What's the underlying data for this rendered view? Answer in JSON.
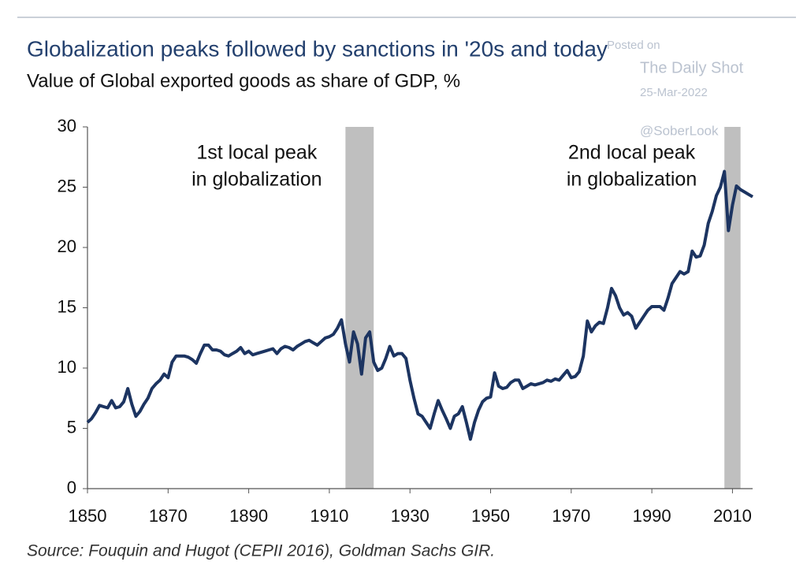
{
  "chart_data": {
    "type": "line",
    "title": "Globalization peaks followed by sanctions in '20s and today",
    "subtitle": "Value of Global exported goods as share of GDP, %",
    "source": "Source: Fouquin and Hugot (CEPII 2016), Goldman Sachs GIR.",
    "watermark": [
      "Posted on",
      "The Daily Shot",
      "25-Mar-2022",
      "@SoberLook"
    ],
    "annotations": [
      {
        "lines": [
          "1st local peak",
          "in globalization"
        ],
        "x": 1892
      },
      {
        "lines": [
          "2nd local peak",
          "in globalization"
        ],
        "x": 1985
      }
    ],
    "shaded_periods": [
      [
        1914,
        1921
      ],
      [
        2008,
        2012
      ]
    ],
    "xlim": [
      1850,
      2015
    ],
    "xticks": [
      1850,
      1870,
      1890,
      1910,
      1930,
      1950,
      1970,
      1990,
      2010
    ],
    "ylim": [
      0,
      30
    ],
    "yticks": [
      0,
      5,
      10,
      15,
      20,
      25,
      30
    ],
    "x": [
      1850,
      1851,
      1852,
      1853,
      1854,
      1855,
      1856,
      1857,
      1858,
      1859,
      1860,
      1861,
      1862,
      1863,
      1864,
      1865,
      1866,
      1867,
      1868,
      1869,
      1870,
      1871,
      1872,
      1873,
      1874,
      1875,
      1876,
      1877,
      1878,
      1879,
      1880,
      1881,
      1882,
      1883,
      1884,
      1885,
      1886,
      1887,
      1888,
      1889,
      1890,
      1891,
      1892,
      1893,
      1894,
      1895,
      1896,
      1897,
      1898,
      1899,
      1900,
      1901,
      1902,
      1903,
      1904,
      1905,
      1906,
      1907,
      1908,
      1909,
      1910,
      1911,
      1912,
      1913,
      1914,
      1915,
      1916,
      1917,
      1918,
      1919,
      1920,
      1921,
      1922,
      1923,
      1924,
      1925,
      1926,
      1927,
      1928,
      1929,
      1930,
      1931,
      1932,
      1933,
      1934,
      1935,
      1936,
      1937,
      1938,
      1939,
      1940,
      1941,
      1942,
      1943,
      1944,
      1945,
      1946,
      1947,
      1948,
      1949,
      1950,
      1951,
      1952,
      1953,
      1954,
      1955,
      1956,
      1957,
      1958,
      1959,
      1960,
      1961,
      1962,
      1963,
      1964,
      1965,
      1966,
      1967,
      1968,
      1969,
      1970,
      1971,
      1972,
      1973,
      1974,
      1975,
      1976,
      1977,
      1978,
      1979,
      1980,
      1981,
      1982,
      1983,
      1984,
      1985,
      1986,
      1987,
      1988,
      1989,
      1990,
      1991,
      1992,
      1993,
      1994,
      1995,
      1996,
      1997,
      1998,
      1999,
      2000,
      2001,
      2002,
      2003,
      2004,
      2005,
      2006,
      2007,
      2008,
      2009,
      2010,
      2011,
      2012,
      2013,
      2014,
      2015
    ],
    "series": [
      {
        "color": "#1c3461",
        "values": [
          5.5,
          5.8,
          6.3,
          6.9,
          6.8,
          6.7,
          7.3,
          6.7,
          6.8,
          7.2,
          8.3,
          7.0,
          6.0,
          6.4,
          7.0,
          7.5,
          8.3,
          8.7,
          9.0,
          9.5,
          9.2,
          10.5,
          11.0,
          11.0,
          11.0,
          10.9,
          10.7,
          10.4,
          11.2,
          11.9,
          11.9,
          11.5,
          11.5,
          11.4,
          11.1,
          11.0,
          11.2,
          11.4,
          11.7,
          11.2,
          11.4,
          11.1,
          11.2,
          11.3,
          11.4,
          11.5,
          11.6,
          11.2,
          11.6,
          11.8,
          11.7,
          11.5,
          11.8,
          12.0,
          12.2,
          12.3,
          12.1,
          11.9,
          12.2,
          12.5,
          12.6,
          12.8,
          13.3,
          14.0,
          12.0,
          10.5,
          13.0,
          12.0,
          9.5,
          12.5,
          13.0,
          10.5,
          9.8,
          10.0,
          10.8,
          11.8,
          11.0,
          11.2,
          11.2,
          10.8,
          9.0,
          7.5,
          6.2,
          6.0,
          5.5,
          5.0,
          6.2,
          7.3,
          6.5,
          5.8,
          5.0,
          6.0,
          6.2,
          6.8,
          5.5,
          4.1,
          5.5,
          6.5,
          7.2,
          7.5,
          7.6,
          9.6,
          8.5,
          8.3,
          8.4,
          8.8,
          9.0,
          9.0,
          8.3,
          8.5,
          8.7,
          8.6,
          8.7,
          8.8,
          9.0,
          8.9,
          9.1,
          9.0,
          9.4,
          9.8,
          9.2,
          9.3,
          9.7,
          11.0,
          13.9,
          13.0,
          13.5,
          13.8,
          13.7,
          15.0,
          16.6,
          16.0,
          15.0,
          14.4,
          14.6,
          14.3,
          13.3,
          13.8,
          14.3,
          14.8,
          15.1,
          15.1,
          15.1,
          14.8,
          15.8,
          17.0,
          17.5,
          18.0,
          17.8,
          18.0,
          19.7,
          19.2,
          19.3,
          20.2,
          22.0,
          23.0,
          24.3,
          25.0,
          26.3,
          21.4,
          23.5,
          25.1,
          24.8,
          24.6,
          24.4,
          24.2
        ]
      }
    ]
  }
}
